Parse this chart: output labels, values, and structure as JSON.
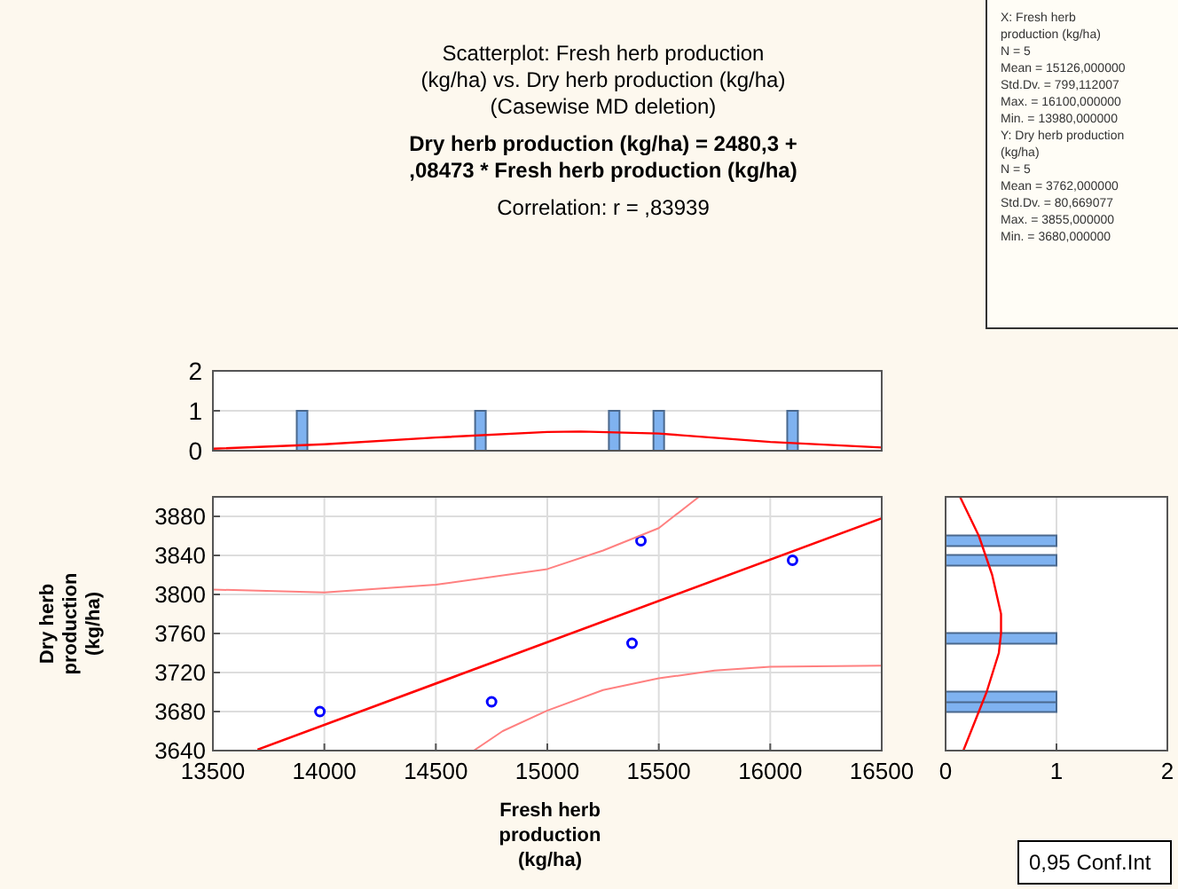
{
  "chart_data": [
    {
      "type": "scatter",
      "xlabel": "Fresh herb production (kg/ha)",
      "ylabel": "Dry herb production (kg/ha)",
      "annotations": [
        "0,95 Conf.Int"
      ],
      "xlim": [
        13500,
        16500
      ],
      "xticks": [
        13500,
        14000,
        14500,
        15000,
        15500,
        16000,
        16500
      ],
      "ylim": [
        3640,
        3900
      ],
      "yticks": [
        3640,
        3680,
        3720,
        3760,
        3800,
        3840,
        3880
      ],
      "grid": true,
      "series": [
        {
          "type": "scatter",
          "marker": "circle",
          "color": "#0000ff",
          "x": [
            13980,
            14750,
            15380,
            15420,
            16100
          ],
          "values": [
            3680,
            3690,
            3750,
            3855,
            3835
          ]
        },
        {
          "type": "line",
          "color": "#ff0000",
          "x": [
            13700,
            16500
          ],
          "values": [
            3641,
            3878
          ]
        },
        {
          "type": "line",
          "color": "#ff8080",
          "x": [
            13500,
            14000,
            14500,
            15000,
            15250,
            15500,
            15680
          ],
          "values": [
            3805,
            3802,
            3810,
            3826,
            3845,
            3868,
            3900
          ]
        },
        {
          "type": "line",
          "color": "#ff8080",
          "x": [
            14670,
            14800,
            15000,
            15250,
            15500,
            15750,
            16000,
            16500
          ],
          "values": [
            3640,
            3660,
            3681,
            3702,
            3714,
            3722,
            3726,
            3727
          ]
        }
      ]
    },
    {
      "type": "histogram",
      "title": "Scatterplot: Fresh herb production (kg/ha) vs. Dry herb production (kg/ha) (Casewise MD deletion)",
      "subtitle": "Dry herb production (kg/ha) = 2480,3 + ,08473 * Fresh herb production (kg/ha)",
      "annotations": [
        "Correlation: r = ,83939"
      ],
      "xlim": [
        13500,
        16500
      ],
      "ylim": [
        0,
        2
      ],
      "yticks": [
        0,
        1,
        2
      ],
      "tick_labels": "y",
      "grid": "y",
      "bins": [
        13600,
        13800,
        14000,
        14200,
        14400,
        14600,
        14800,
        15000,
        15200,
        15400,
        15600,
        15800,
        16000,
        16200,
        16400
      ],
      "series": [
        {
          "type": "histogram",
          "color": "#7fb2f0",
          "values": [
            0,
            1,
            0,
            0,
            0,
            1,
            0,
            0,
            1,
            1,
            0,
            0,
            1,
            0
          ]
        },
        {
          "type": "line",
          "color": "#ff0000",
          "x": [
            13500,
            14000,
            14500,
            15000,
            15150,
            15500,
            16000,
            16500
          ],
          "values": [
            0.05,
            0.16,
            0.33,
            0.47,
            0.48,
            0.43,
            0.22,
            0.08
          ]
        }
      ]
    },
    {
      "type": "histogram",
      "orientation": "horizontal",
      "xlim": [
        0,
        2
      ],
      "xticks": [
        0,
        1,
        2
      ],
      "ylim": [
        3640,
        3900
      ],
      "tick_labels": "x",
      "grid": "x",
      "bins": [
        3640,
        3650,
        3660,
        3670,
        3680,
        3690,
        3700,
        3710,
        3720,
        3730,
        3740,
        3750,
        3760,
        3770,
        3780,
        3790,
        3800,
        3810,
        3820,
        3830,
        3840,
        3850,
        3860,
        3870,
        3880,
        3890,
        3900
      ],
      "series": [
        {
          "type": "histogram",
          "color": "#7fb2f0",
          "values": [
            0,
            0,
            0,
            0,
            1,
            1,
            0,
            0,
            0,
            0,
            0,
            1,
            0,
            0,
            0,
            0,
            0,
            0,
            0,
            1,
            0,
            1,
            0,
            0,
            0,
            0
          ]
        },
        {
          "type": "line",
          "color": "#ff0000",
          "x": [
            3900,
            3860,
            3820,
            3780,
            3760,
            3740,
            3700,
            3660,
            3640
          ],
          "values": [
            0.13,
            0.3,
            0.42,
            0.5,
            0.5,
            0.48,
            0.37,
            0.23,
            0.16
          ]
        }
      ]
    },
    {
      "type": "other",
      "annotations": [
        "X: Fresh herb production (kg/ha)",
        "N = 5",
        "Mean = 15126,000000",
        "Std.Dv. = 799,112007",
        "Max. = 16100,000000",
        "Min. = 13980,000000",
        "Y: Dry herb production (kg/ha)",
        "N = 5",
        "Mean = 3762,000000",
        "Std.Dv. = 80,669077",
        "Max. = 3855,000000",
        "Min. = 3680,000000"
      ]
    }
  ]
}
